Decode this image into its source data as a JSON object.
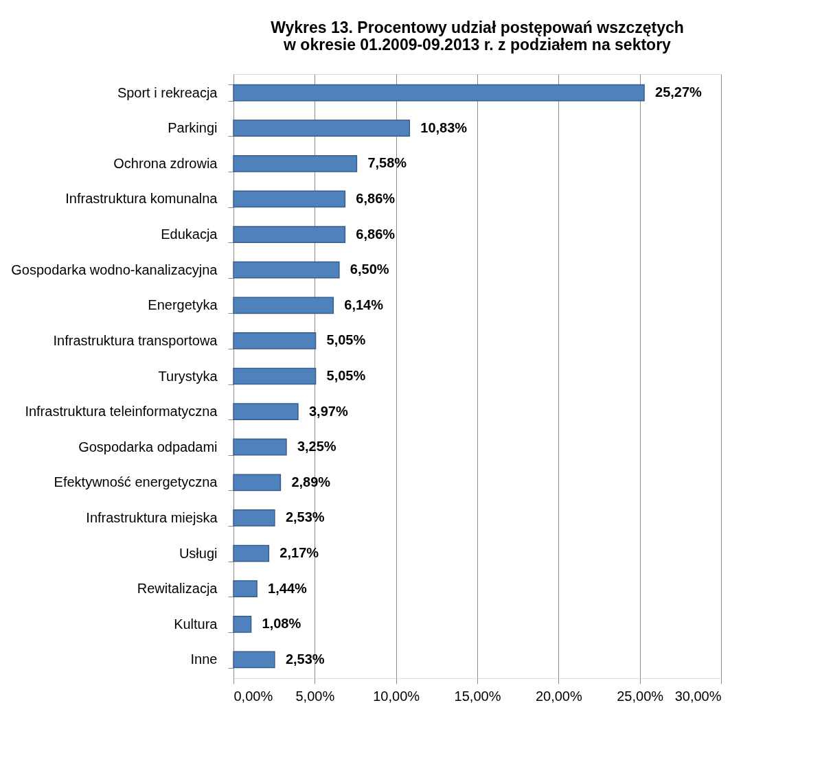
{
  "chart_data": {
    "type": "bar",
    "orientation": "horizontal",
    "title": "Wykres 13. Procentowy udział postępowań wszczętych\nw okresie 01.2009-09.2013 r. z podziałem na sektory",
    "categories": [
      "Sport i rekreacja",
      "Parkingi",
      "Ochrona zdrowia",
      "Infrastruktura komunalna",
      "Edukacja",
      "Gospodarka wodno-kanalizacyjna",
      "Energetyka",
      "Infrastruktura transportowa",
      "Turystyka",
      "Infrastruktura teleinformatyczna",
      "Gospodarka odpadami",
      "Efektywność energetyczna",
      "Infrastruktura miejska",
      "Usługi",
      "Rewitalizacja",
      "Kultura",
      "Inne"
    ],
    "values": [
      25.27,
      10.83,
      7.58,
      6.86,
      6.86,
      6.5,
      6.14,
      5.05,
      5.05,
      3.97,
      3.25,
      2.89,
      2.53,
      2.17,
      1.44,
      1.08,
      2.53
    ],
    "value_labels": [
      "25,27%",
      "10,83%",
      "7,58%",
      "6,86%",
      "6,86%",
      "6,50%",
      "6,14%",
      "5,05%",
      "5,05%",
      "3,97%",
      "3,25%",
      "2,89%",
      "2,53%",
      "2,17%",
      "1,44%",
      "1,08%",
      "2,53%"
    ],
    "color": "#4f81bd",
    "xlim": [
      0,
      30
    ],
    "xticks": [
      {
        "value": 0,
        "label": "0,00%"
      },
      {
        "value": 5,
        "label": "5,00%"
      },
      {
        "value": 10,
        "label": "10,00%"
      },
      {
        "value": 15,
        "label": "15,00%"
      },
      {
        "value": 20,
        "label": "20,00%"
      },
      {
        "value": 25,
        "label": "25,00%"
      },
      {
        "value": 30,
        "label": "30,00%"
      }
    ],
    "grid": "x"
  }
}
